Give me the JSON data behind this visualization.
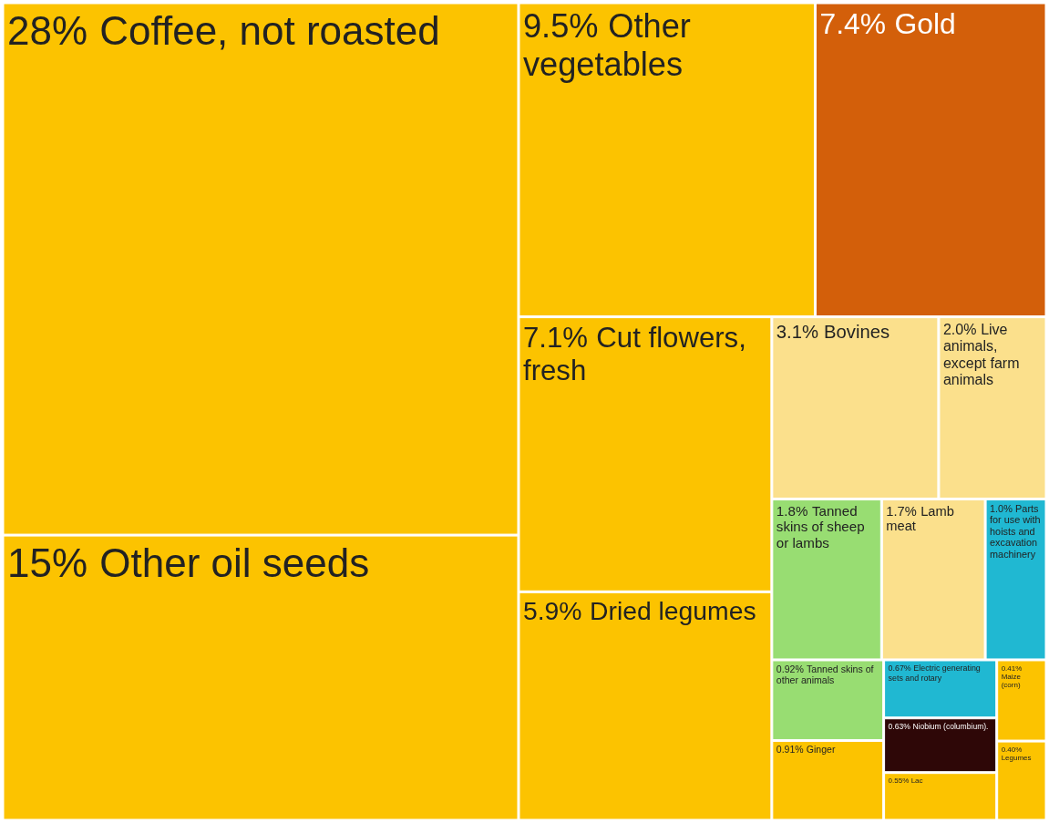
{
  "chart_data": {
    "type": "other",
    "categories": [
      "Coffee, not roasted",
      "Other oil seeds",
      "Other vegetables",
      "Gold",
      "Cut flowers, fresh",
      "Dried legumes",
      "Bovines",
      "Live animals, except farm animals",
      "Tanned skins of sheep or lambs",
      "Lamb meat",
      "Parts for use with hoists and excavation machinery",
      "Tanned skins of other animals",
      "Ginger",
      "Electric generating sets and rotary",
      "Niobium (columbium).",
      "Lac",
      "Maize (corn)",
      "Legumes"
    ],
    "values": [
      28,
      15,
      9.5,
      7.4,
      7.1,
      5.9,
      3.1,
      2.0,
      1.8,
      1.7,
      1.0,
      0.92,
      0.91,
      0.67,
      0.63,
      0.55,
      0.41,
      0.4
    ],
    "value_labels": [
      "28%",
      "15%",
      "9.5%",
      "7.4%",
      "7.1%",
      "5.9%",
      "3.1%",
      "2.0%",
      "1.8%",
      "1.7%",
      "1.0%",
      "0.92%",
      "0.91%",
      "0.67%",
      "0.63%",
      "0.55%",
      "0.41%",
      "0.40%"
    ],
    "colors": [
      "#fcc300",
      "#fcc300",
      "#fcc300",
      "#d35f0a",
      "#fcc300",
      "#fcc300",
      "#fbe08c",
      "#fbe08c",
      "#98dd72",
      "#fbe08c",
      "#20b8d2",
      "#98dd72",
      "#fcc300",
      "#20b8d2",
      "#2e0707",
      "#fcc300",
      "#fcc300",
      "#fcc300"
    ]
  }
}
